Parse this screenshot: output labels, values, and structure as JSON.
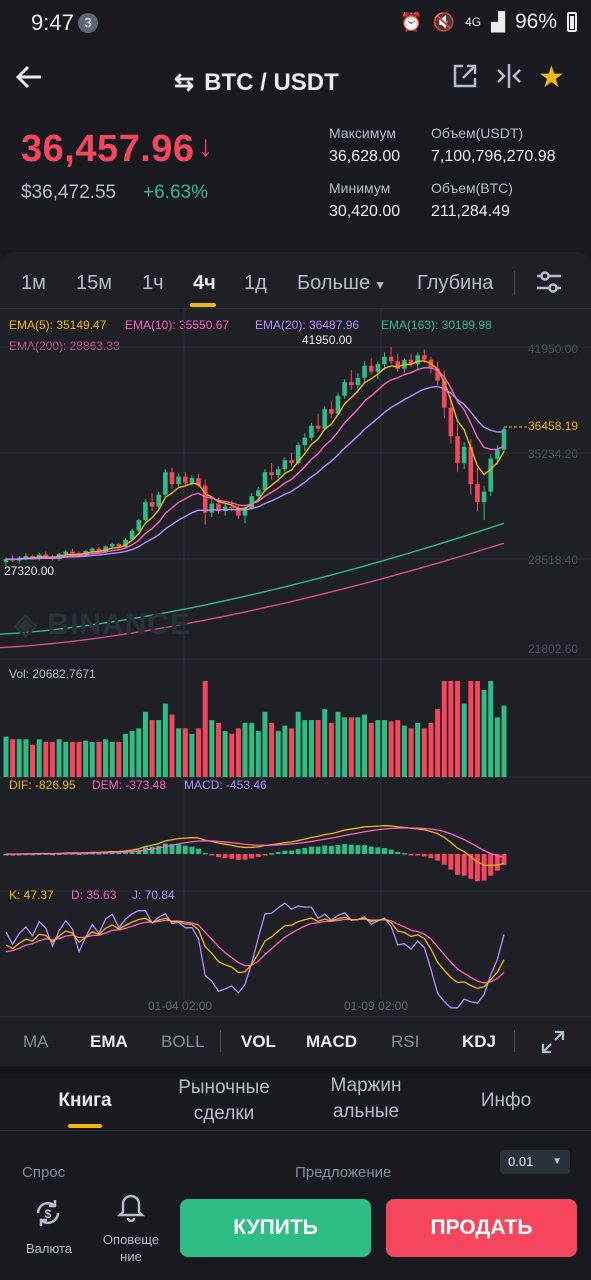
{
  "status_bar": {
    "time": "9:47",
    "notif_count": "3",
    "battery": "96%",
    "network": "4G"
  },
  "header": {
    "pair": "BTC / USDT"
  },
  "price": {
    "last": "36,457.96",
    "usd": "$36,472.55",
    "change": "+6.63%"
  },
  "stats": {
    "high_label": "Максимум",
    "high_value": "36,628.00",
    "low_label": "Минимум",
    "low_value": "30,420.00",
    "vol_usdt_label": "Объем(USDT)",
    "vol_usdt_value": "7,100,796,270.98",
    "vol_btc_label": "Объем(BTC)",
    "vol_btc_value": "211,284.49"
  },
  "intervals": [
    "1м",
    "15м",
    "1ч",
    "4ч",
    "1д",
    "Больше",
    "Глубина"
  ],
  "active_interval": "4ч",
  "ema_legend": {
    "ema5": "EMA(5): 35149.47",
    "ema10": "EMA(10): 35550.67",
    "ema20": "EMA(20): 36487.96",
    "ema163": "EMA(163): 30189.98",
    "ema200": "EMA(200): 28863.33"
  },
  "chart_labels": {
    "high_marker": "41950.00",
    "low_marker": "27320.00",
    "current_price": "36458.19",
    "axis_1": "41950.00",
    "axis_2": "35234.20",
    "axis_3": "28518.40",
    "axis_4": "21802.60",
    "watermark": "BINANCE"
  },
  "volume_legend": "Vol: 20682.7671",
  "macd_legend": {
    "dif": "DIF: -826.95",
    "dem": "DEM: -373.48",
    "macd": "MACD: -453.46"
  },
  "kdj_legend": {
    "k": "K: 47.37",
    "d": "D: 35.63",
    "j": "J: 70.84"
  },
  "x_labels": [
    "01-04 02:00",
    "01-09 02:00"
  ],
  "indicators": [
    "MA",
    "EMA",
    "BOLL",
    "VOL",
    "MACD",
    "RSI",
    "KDJ"
  ],
  "book_tabs": [
    "Книга",
    "Рыночные сделки",
    "Маржин альные",
    "Инфо"
  ],
  "book": {
    "bid_label": "Спрос",
    "ask_label": "Предложение",
    "precision": "0.01"
  },
  "bottom_nav": {
    "currency": "Валюта",
    "alert": "Оповеще ние"
  },
  "buttons": {
    "buy": "КУПИТЬ",
    "sell": "ПРОДАТЬ"
  },
  "colors": {
    "up": "#2ebd85",
    "down": "#f6465d",
    "accent": "#f0b90b",
    "background": "#181a20"
  },
  "chart_data": {
    "type": "candlestick",
    "ylim": [
      21802.6,
      41950.0
    ],
    "y_ticks": [
      41950.0,
      35234.2,
      28518.4,
      21802.6
    ],
    "candles": [
      [
        27600,
        27900,
        27300,
        27800
      ],
      [
        27800,
        28100,
        27600,
        27700
      ],
      [
        27700,
        28000,
        27500,
        27900
      ],
      [
        27900,
        28200,
        27700,
        28000
      ],
      [
        28000,
        28100,
        27800,
        27850
      ],
      [
        27850,
        28200,
        27700,
        28100
      ],
      [
        28100,
        28300,
        27900,
        28000
      ],
      [
        28000,
        28100,
        27700,
        27800
      ],
      [
        27800,
        28200,
        27700,
        28150
      ],
      [
        28150,
        28400,
        28000,
        28300
      ],
      [
        28300,
        28500,
        28100,
        28200
      ],
      [
        28200,
        28300,
        27900,
        28050
      ],
      [
        28050,
        28400,
        27950,
        28350
      ],
      [
        28350,
        28600,
        28200,
        28500
      ],
      [
        28500,
        28600,
        28200,
        28300
      ],
      [
        28300,
        28700,
        28200,
        28650
      ],
      [
        28650,
        28900,
        28500,
        28800
      ],
      [
        28800,
        28900,
        28500,
        28600
      ],
      [
        28600,
        29200,
        28500,
        29100
      ],
      [
        29100,
        29800,
        29000,
        29700
      ],
      [
        29700,
        30500,
        29600,
        30400
      ],
      [
        30400,
        31800,
        30300,
        31600
      ],
      [
        31600,
        32200,
        31000,
        31300
      ],
      [
        31300,
        32300,
        31100,
        32100
      ],
      [
        32100,
        33800,
        32000,
        33600
      ],
      [
        33600,
        33900,
        32500,
        32800
      ],
      [
        32800,
        33500,
        32600,
        33300
      ],
      [
        33300,
        33600,
        32700,
        32900
      ],
      [
        32900,
        33400,
        32700,
        33200
      ],
      [
        33200,
        33500,
        32600,
        32700
      ],
      [
        32700,
        33100,
        30100,
        30900
      ],
      [
        30900,
        31800,
        30600,
        31500
      ],
      [
        31500,
        31900,
        30800,
        31000
      ],
      [
        31000,
        31500,
        30700,
        31300
      ],
      [
        31300,
        31700,
        31000,
        31200
      ],
      [
        31200,
        31400,
        30500,
        30700
      ],
      [
        30700,
        31300,
        30200,
        31200
      ],
      [
        31200,
        32200,
        31100,
        32000
      ],
      [
        32000,
        32600,
        31800,
        32400
      ],
      [
        32400,
        33800,
        32300,
        33600
      ],
      [
        33600,
        34200,
        33100,
        33400
      ],
      [
        33400,
        34000,
        33200,
        33800
      ],
      [
        33800,
        34600,
        33600,
        34400
      ],
      [
        34400,
        34900,
        34000,
        34200
      ],
      [
        34200,
        35600,
        34100,
        35400
      ],
      [
        35400,
        36200,
        35000,
        35900
      ],
      [
        35900,
        36900,
        35700,
        36700
      ],
      [
        36700,
        37500,
        36300,
        36500
      ],
      [
        36500,
        38000,
        36400,
        37800
      ],
      [
        37800,
        38300,
        37200,
        37500
      ],
      [
        37500,
        38900,
        37400,
        38700
      ],
      [
        38700,
        39800,
        38500,
        39600
      ],
      [
        39600,
        40400,
        39100,
        39400
      ],
      [
        39400,
        40200,
        38900,
        39900
      ],
      [
        39900,
        41000,
        39600,
        40700
      ],
      [
        40700,
        41200,
        40100,
        40300
      ],
      [
        40300,
        41000,
        39800,
        40800
      ],
      [
        40800,
        41600,
        40400,
        41300
      ],
      [
        41300,
        41950,
        40800,
        41000
      ],
      [
        41000,
        41500,
        40300,
        40500
      ],
      [
        40500,
        41200,
        40200,
        41100
      ],
      [
        41100,
        41500,
        40600,
        40800
      ],
      [
        40800,
        41600,
        40500,
        41400
      ],
      [
        41400,
        41800,
        40900,
        41100
      ],
      [
        41100,
        41300,
        40200,
        40500
      ],
      [
        40500,
        41000,
        39400,
        39700
      ],
      [
        39700,
        40400,
        37200,
        37900
      ],
      [
        37900,
        38700,
        35500,
        36000
      ],
      [
        36000,
        36800,
        33600,
        34200
      ],
      [
        34200,
        35600,
        33800,
        35300
      ],
      [
        35300,
        35800,
        32100,
        32800
      ],
      [
        32800,
        33900,
        31000,
        31600
      ],
      [
        31600,
        32700,
        30400,
        32300
      ],
      [
        32300,
        34800,
        32000,
        34500
      ],
      [
        34500,
        35400,
        34100,
        35100
      ],
      [
        35100,
        36628,
        34900,
        36458
      ]
    ]
  }
}
